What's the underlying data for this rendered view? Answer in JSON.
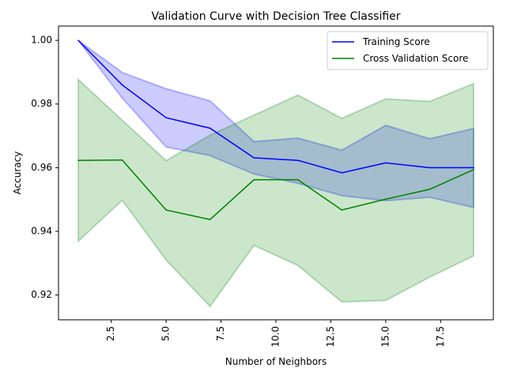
{
  "chart_data": {
    "type": "line",
    "title": "Validation Curve with Decision Tree Classifier",
    "xlabel": "Number of Neighbors",
    "ylabel": "Accuracy",
    "xlim": [
      0.1,
      19.9
    ],
    "ylim": [
      0.9122,
      1.0045
    ],
    "x_ticks": [
      2.5,
      5.0,
      7.5,
      10.0,
      12.5,
      15.0,
      17.5
    ],
    "x_tick_labels": [
      "2.5",
      "5.0",
      "7.5",
      "10.0",
      "12.5",
      "15.0",
      "17.5"
    ],
    "x_tick_rotation": 90,
    "y_ticks": [
      0.92,
      0.94,
      0.96,
      0.98,
      1.0
    ],
    "y_tick_labels": [
      "0.92",
      "0.94",
      "0.96",
      "0.98",
      "1.00"
    ],
    "legend_position": "top-right",
    "grid": false,
    "x": [
      1,
      3,
      5,
      7,
      9,
      11,
      13,
      15,
      17,
      19
    ],
    "series": [
      {
        "name": "Training Score",
        "color": "#0000ff",
        "band_color": "#0000ff",
        "band_opacity": 0.2,
        "values": [
          1.0,
          0.986,
          0.9757,
          0.9724,
          0.9631,
          0.9623,
          0.9584,
          0.9615,
          0.96,
          0.96
        ],
        "upper": [
          1.0,
          0.9899,
          0.9848,
          0.981,
          0.9682,
          0.9693,
          0.9655,
          0.9733,
          0.9691,
          0.9723
        ],
        "lower": [
          1.0,
          0.9819,
          0.9665,
          0.9638,
          0.958,
          0.9551,
          0.9512,
          0.9496,
          0.9507,
          0.9475
        ]
      },
      {
        "name": "Cross Validation Score",
        "color": "#008000",
        "band_color": "#008000",
        "band_opacity": 0.2,
        "values": [
          0.9623,
          0.9624,
          0.9467,
          0.9437,
          0.9562,
          0.9562,
          0.9467,
          0.9501,
          0.9532,
          0.9594
        ],
        "upper": [
          0.9877,
          0.9749,
          0.9622,
          0.9702,
          0.9765,
          0.9828,
          0.9755,
          0.9816,
          0.9808,
          0.9864
        ],
        "lower": [
          0.9369,
          0.9498,
          0.931,
          0.9164,
          0.9356,
          0.9293,
          0.9178,
          0.9183,
          0.9256,
          0.9323
        ]
      }
    ]
  }
}
